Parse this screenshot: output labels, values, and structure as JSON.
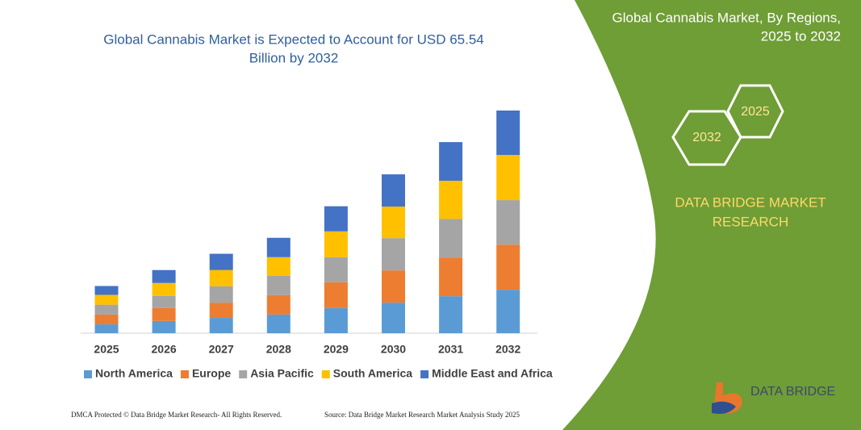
{
  "chart_data": {
    "type": "stacked-bar",
    "title": [
      "Global Cannabis Market is Expected to Account for USD 65.54",
      "Billion by 2032"
    ],
    "categories": [
      "2025",
      "2026",
      "2027",
      "2028",
      "2029",
      "2030",
      "2031",
      "2032"
    ],
    "series": [
      {
        "name": "North America",
        "color": "#5b9bd5",
        "values": [
          2.6,
          3.6,
          4.5,
          5.5,
          7.4,
          9.0,
          10.9,
          12.8
        ]
      },
      {
        "name": "Europe",
        "color": "#ed7d31",
        "values": [
          2.9,
          3.8,
          4.5,
          5.7,
          7.6,
          9.5,
          11.4,
          13.3
        ]
      },
      {
        "name": "Asia Pacific",
        "color": "#a5a5a5",
        "values": [
          2.9,
          3.6,
          4.8,
          5.7,
          7.4,
          9.5,
          11.4,
          13.1
        ]
      },
      {
        "name": "South America",
        "color": "#ffc000",
        "values": [
          2.9,
          3.8,
          4.8,
          5.5,
          7.6,
          9.3,
          11.2,
          13.3
        ]
      },
      {
        "name": "Middle East and Africa",
        "color": "#4472c4",
        "values": [
          2.6,
          3.8,
          4.8,
          5.7,
          7.4,
          9.5,
          11.4,
          13.1
        ]
      }
    ]
  },
  "panel": {
    "title": [
      "Global Cannabis Market, By Regions,",
      "2025 to 2032"
    ],
    "hexagons": [
      "2025",
      "2032"
    ],
    "brand": [
      "DATA BRIDGE MARKET",
      "RESEARCH"
    ],
    "logo": "DATA BRIDGE"
  },
  "footer": {
    "left": "DMCA Protected © Data Bridge Market Research-  All Rights Reserved.",
    "right": "Source: Data Bridge Market Research  Market Analysis Study 2025"
  }
}
